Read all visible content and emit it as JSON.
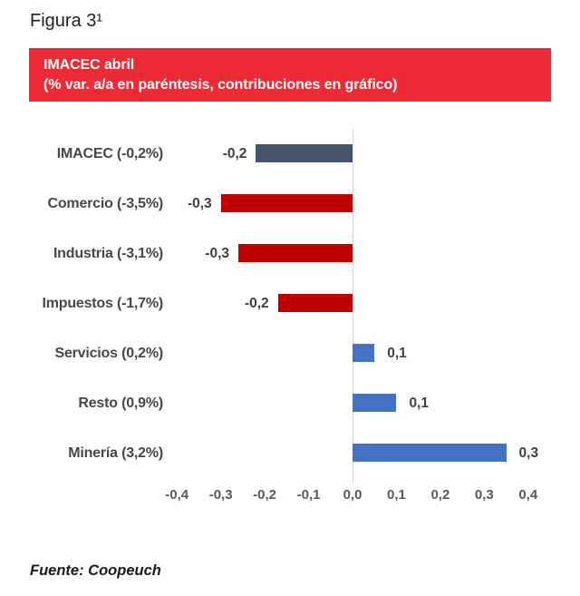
{
  "page": {
    "figure_label": "Figura 3¹",
    "source": "Fuente: Coopeuch"
  },
  "banner": {
    "title": "IMACEC abril",
    "subtitle": "(% var. a/a en paréntesis, contribuciones en gráfico)",
    "background_color": "#EC2B36",
    "text_color": "#FFFFFF"
  },
  "colors": {
    "bar_slate": "#44546A",
    "bar_red": "#C00000",
    "bar_blue": "#4472C4",
    "zero_axis_line": "#D9D9D9"
  },
  "chart_data": {
    "type": "bar",
    "orientation": "horizontal",
    "title": "IMACEC abril",
    "subtitle": "(% var. a/a en paréntesis, contribuciones en gráfico)",
    "categories": [
      "IMACEC (-0,2%)",
      "Comercio (-3,5%)",
      "Industria (-3,1%)",
      "Impuestos (-1,7%)",
      "Servicios (0,2%)",
      "Resto (0,9%)",
      "Minería (3,2%)"
    ],
    "values": [
      -0.22,
      -0.3,
      -0.26,
      -0.17,
      0.05,
      0.1,
      0.35
    ],
    "value_labels": [
      "-0,2",
      "-0,3",
      "-0,3",
      "-0,2",
      "0,1",
      "0,1",
      "0,3"
    ],
    "bar_colors": [
      "#44546A",
      "#C00000",
      "#C00000",
      "#C00000",
      "#4472C4",
      "#4472C4",
      "#4472C4"
    ],
    "x_ticks": [
      {
        "value": -0.4,
        "label": "-0,4"
      },
      {
        "value": -0.3,
        "label": "-0,3"
      },
      {
        "value": -0.2,
        "label": "-0,2"
      },
      {
        "value": -0.1,
        "label": "-0,1"
      },
      {
        "value": 0.0,
        "label": "0,0"
      },
      {
        "value": 0.1,
        "label": "0,1"
      },
      {
        "value": 0.2,
        "label": "0,2"
      },
      {
        "value": 0.3,
        "label": "0,3"
      },
      {
        "value": 0.4,
        "label": "0,4"
      }
    ],
    "xlim": [
      -0.45,
      0.45
    ],
    "grid": "zero-axis-only",
    "legend": "none",
    "xlabel": "",
    "ylabel": ""
  }
}
